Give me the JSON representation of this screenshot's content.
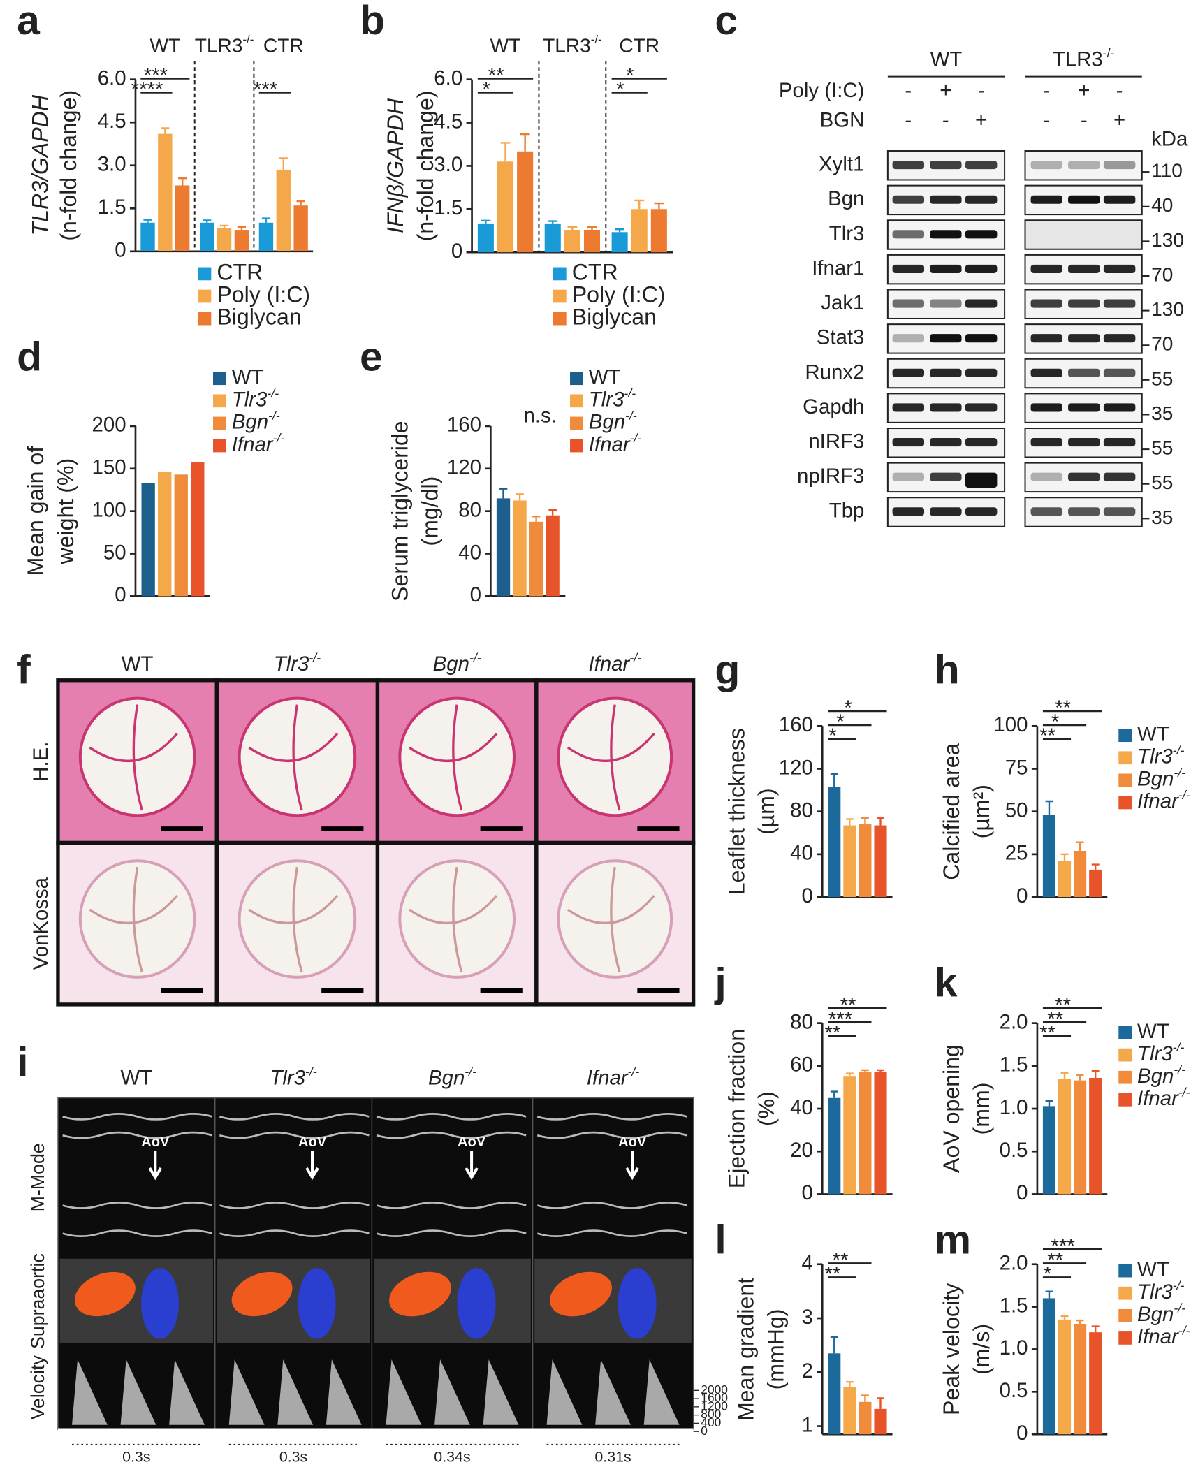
{
  "chart_data": [
    {
      "label": "a",
      "type": "bar",
      "categories": [
        "WT",
        "TLR3-/-",
        "CTR"
      ],
      "ylabel": [
        "TLR3/GAPDH",
        "(n-fold change)"
      ],
      "ylabel_italic_first": true,
      "ylim": [
        0,
        6
      ],
      "yticks": [
        0,
        1.5,
        {
          "value": 3,
          "label": "3.0"
        },
        4.5,
        {
          "value": 6,
          "label": "6.0"
        }
      ],
      "series": [
        {
          "name": "CTR",
          "color": "#1a9ad6",
          "values": [
            1.0,
            1.0,
            1.0
          ],
          "errors": [
            0.1,
            0.08,
            0.15
          ]
        },
        {
          "name": "Poly (I:C)",
          "color": "#f5a84a",
          "values": [
            4.1,
            0.8,
            2.85
          ],
          "errors": [
            0.2,
            0.1,
            0.4
          ]
        },
        {
          "name": "Biglycan",
          "color": "#ec7a30",
          "values": [
            2.3,
            0.75,
            1.6
          ],
          "errors": [
            0.25,
            0.1,
            0.15
          ]
        }
      ],
      "annotations": [
        [
          "****",
          "***"
        ],
        [],
        [
          "***"
        ]
      ]
    },
    {
      "label": "b",
      "type": "bar",
      "categories": [
        "WT",
        "TLR3-/-",
        "CTR"
      ],
      "ylabel": [
        "IFNβ/GAPDH",
        "(n-fold change)"
      ],
      "ylabel_italic_first": true,
      "ylim": [
        0,
        6
      ],
      "yticks": [
        0,
        1.5,
        {
          "value": 3,
          "label": "3.0"
        },
        4.5,
        {
          "value": 6,
          "label": "6.0"
        }
      ],
      "series": [
        {
          "name": "CTR",
          "color": "#1a9ad6",
          "values": [
            1.0,
            1.0,
            0.7
          ],
          "errors": [
            0.1,
            0.08,
            0.1
          ]
        },
        {
          "name": "Poly (I:C)",
          "color": "#f5a84a",
          "values": [
            3.15,
            0.78,
            1.5
          ],
          "errors": [
            0.65,
            0.1,
            0.3
          ]
        },
        {
          "name": "Biglycan",
          "color": "#ec7a30",
          "values": [
            3.5,
            0.78,
            1.5
          ],
          "errors": [
            0.6,
            0.1,
            0.2
          ]
        }
      ],
      "annotations": [
        [
          "*",
          "**"
        ],
        [],
        [
          "*",
          "*"
        ]
      ]
    },
    {
      "label": "d",
      "type": "bar",
      "categories": [
        null
      ],
      "ylabel": [
        "Mean gain of",
        "weight (%)"
      ],
      "ylim": [
        0,
        200
      ],
      "yticks": [
        0,
        50,
        100,
        150,
        200
      ],
      "legend_italic": true,
      "series": [
        {
          "name": "WT",
          "color": "#1c5f8c",
          "values": [
            133
          ]
        },
        {
          "name": "Tlr3-/-",
          "color": "#f5a84a",
          "values": [
            146
          ]
        },
        {
          "name": "Bgn-/-",
          "color": "#ef8b3b",
          "values": [
            143
          ]
        },
        {
          "name": "Ifnar-/-",
          "color": "#e8542a",
          "values": [
            158
          ]
        }
      ]
    },
    {
      "label": "e",
      "type": "bar",
      "categories": [
        null
      ],
      "ylabel": [
        "Serum triglyceride",
        "(mg/dl)"
      ],
      "ylim": [
        0,
        160
      ],
      "yticks": [
        0,
        40,
        80,
        120,
        160
      ],
      "legend_italic": true,
      "note": "n.s.",
      "series": [
        {
          "name": "WT",
          "color": "#1c5f8c",
          "values": [
            92
          ],
          "errors": [
            9
          ]
        },
        {
          "name": "Tlr3-/-",
          "color": "#f5a84a",
          "values": [
            90
          ],
          "errors": [
            6
          ]
        },
        {
          "name": "Bgn-/-",
          "color": "#ef8b3b",
          "values": [
            70
          ],
          "errors": [
            5
          ]
        },
        {
          "name": "Ifnar-/-",
          "color": "#e8542a",
          "values": [
            76
          ],
          "errors": [
            5
          ]
        }
      ]
    },
    {
      "label": "g",
      "type": "bar",
      "categories": [
        null
      ],
      "ylabel": [
        "Leaflet thickness",
        "(µm)"
      ],
      "ylim": [
        0,
        160
      ],
      "yticks": [
        0,
        40,
        80,
        120,
        160
      ],
      "series": [
        {
          "color": "#1c6a9c",
          "values": [
            103
          ],
          "errors": [
            12
          ]
        },
        {
          "color": "#f5a84a",
          "values": [
            67
          ],
          "errors": [
            6
          ]
        },
        {
          "color": "#ef8b3b",
          "values": [
            68
          ],
          "errors": [
            6
          ]
        },
        {
          "color": "#e8542a",
          "values": [
            67
          ],
          "errors": [
            7
          ]
        }
      ],
      "annotations": [
        [
          "*",
          "*",
          "*"
        ]
      ]
    },
    {
      "label": "h",
      "type": "bar",
      "categories": [
        null
      ],
      "ylabel": [
        "Calcified area",
        "(µm²)"
      ],
      "ylim": [
        0,
        100
      ],
      "yticks": [
        0,
        25,
        50,
        75,
        100
      ],
      "legend_italic": true,
      "series": [
        {
          "name": "WT",
          "color": "#1c6a9c",
          "values": [
            48
          ],
          "errors": [
            8
          ]
        },
        {
          "name": "Tlr3-/-",
          "color": "#f5a84a",
          "values": [
            21
          ],
          "errors": [
            4
          ]
        },
        {
          "name": "Bgn-/-",
          "color": "#ef8b3b",
          "values": [
            27
          ],
          "errors": [
            5
          ]
        },
        {
          "name": "Ifnar-/-",
          "color": "#e8542a",
          "values": [
            16
          ],
          "errors": [
            3
          ]
        }
      ],
      "annotations": [
        [
          "**",
          "*",
          "**"
        ]
      ]
    },
    {
      "label": "j",
      "type": "bar",
      "categories": [
        null
      ],
      "ylabel": [
        "Ejection fraction",
        "(%)"
      ],
      "ylim": [
        0,
        80
      ],
      "yticks": [
        0,
        20,
        40,
        60,
        80
      ],
      "series": [
        {
          "color": "#1c6a9c",
          "values": [
            45
          ],
          "errors": [
            3
          ]
        },
        {
          "color": "#f5a84a",
          "values": [
            55
          ],
          "errors": [
            1.5
          ]
        },
        {
          "color": "#ef8b3b",
          "values": [
            57
          ],
          "errors": [
            1
          ]
        },
        {
          "color": "#e8542a",
          "values": [
            57
          ],
          "errors": [
            1
          ]
        }
      ],
      "annotations": [
        [
          "**",
          "***",
          "**"
        ]
      ]
    },
    {
      "label": "k",
      "type": "bar",
      "categories": [
        null
      ],
      "ylabel": [
        "AoV opening",
        "(mm)"
      ],
      "ylim": [
        0,
        2
      ],
      "yticks": [
        0,
        0.5,
        {
          "value": 1,
          "label": "1.0"
        },
        1.5,
        {
          "value": 2,
          "label": "2.0"
        }
      ],
      "legend_italic": true,
      "series": [
        {
          "name": "WT",
          "color": "#1c6a9c",
          "values": [
            1.03
          ],
          "errors": [
            0.06
          ]
        },
        {
          "name": "Tlr3-/-",
          "color": "#f5a84a",
          "values": [
            1.35
          ],
          "errors": [
            0.07
          ]
        },
        {
          "name": "Bgn-/-",
          "color": "#ef8b3b",
          "values": [
            1.33
          ],
          "errors": [
            0.06
          ]
        },
        {
          "name": "Ifnar-/-",
          "color": "#e8542a",
          "values": [
            1.36
          ],
          "errors": [
            0.08
          ]
        }
      ],
      "annotations": [
        [
          "**",
          "**",
          "**"
        ]
      ]
    },
    {
      "label": "l",
      "type": "bar",
      "categories": [
        null
      ],
      "ylabel": [
        "Mean gradient",
        "(mmHg)"
      ],
      "ylim": [
        0.85,
        4
      ],
      "yticks": [
        1,
        2,
        3,
        4
      ],
      "series": [
        {
          "color": "#1c6a9c",
          "values": [
            2.35
          ],
          "errors": [
            0.3
          ]
        },
        {
          "color": "#f5a84a",
          "values": [
            1.72
          ],
          "errors": [
            0.1
          ]
        },
        {
          "color": "#ef8b3b",
          "values": [
            1.45
          ],
          "errors": [
            0.12
          ]
        },
        {
          "color": "#e8542a",
          "values": [
            1.32
          ],
          "errors": [
            0.2
          ]
        }
      ],
      "annotations": [
        [
          "**",
          "**"
        ]
      ]
    },
    {
      "label": "m",
      "type": "bar",
      "categories": [
        null
      ],
      "ylabel": [
        "Peak velocity",
        "(m/s)"
      ],
      "ylim": [
        0,
        2
      ],
      "yticks": [
        0,
        0.5,
        {
          "value": 1,
          "label": "1.0"
        },
        1.5,
        {
          "value": 2,
          "label": "2.0"
        }
      ],
      "legend_italic": true,
      "series": [
        {
          "name": "WT",
          "color": "#1c6a9c",
          "values": [
            1.6
          ],
          "errors": [
            0.08
          ]
        },
        {
          "name": "Tlr3-/-",
          "color": "#f5a84a",
          "values": [
            1.35
          ],
          "errors": [
            0.04
          ]
        },
        {
          "name": "Bgn-/-",
          "color": "#ef8b3b",
          "values": [
            1.3
          ],
          "errors": [
            0.04
          ]
        },
        {
          "name": "Ifnar-/-",
          "color": "#e8542a",
          "values": [
            1.2
          ],
          "errors": [
            0.07
          ]
        }
      ],
      "annotations": [
        [
          "*",
          "**",
          "***"
        ]
      ]
    }
  ],
  "blot": {
    "label": "c",
    "groups": [
      "WT",
      "TLR3-/-"
    ],
    "treatments": [
      {
        "name": "Poly (I:C)",
        "signs": [
          "-",
          "+",
          "-",
          "-",
          "+",
          "-"
        ]
      },
      {
        "name": "BGN",
        "signs": [
          "-",
          "-",
          "+",
          "-",
          "-",
          "+"
        ]
      }
    ],
    "unit": "kDa",
    "rows": [
      {
        "protein": "Xylt1",
        "marker": "110"
      },
      {
        "protein": "Bgn",
        "marker": "40"
      },
      {
        "protein": "Tlr3",
        "marker": "130"
      },
      {
        "protein": "Ifnar1",
        "marker": "70"
      },
      {
        "protein": "Jak1",
        "marker": "130"
      },
      {
        "protein": "Stat3",
        "marker": "70"
      },
      {
        "protein": "Runx2",
        "marker": "55"
      },
      {
        "protein": "Gapdh",
        "marker": "35"
      },
      {
        "protein": "nIRF3",
        "marker": "55"
      },
      {
        "protein": "npIRF3",
        "marker": "55"
      },
      {
        "protein": "Tbp",
        "marker": "35"
      }
    ]
  },
  "histology": {
    "label": "f",
    "columns": [
      "WT",
      "Tlr3-/-",
      "Bgn-/-",
      "Ifnar-/-"
    ],
    "rows": [
      "H.E.",
      "VonKossa"
    ]
  },
  "echo": {
    "label": "i",
    "columns": [
      "WT",
      "Tlr3-/-",
      "Bgn-/-",
      "Ifnar-/-"
    ],
    "rows": [
      "M-Mode",
      "Supraaortic",
      "Velocity"
    ],
    "marker": "AoV",
    "velocity_scale": [
      2000,
      1600,
      1200,
      800,
      400,
      0
    ],
    "durations": [
      "0.3s",
      "0.3s",
      "0.34s",
      "0.31s"
    ]
  }
}
